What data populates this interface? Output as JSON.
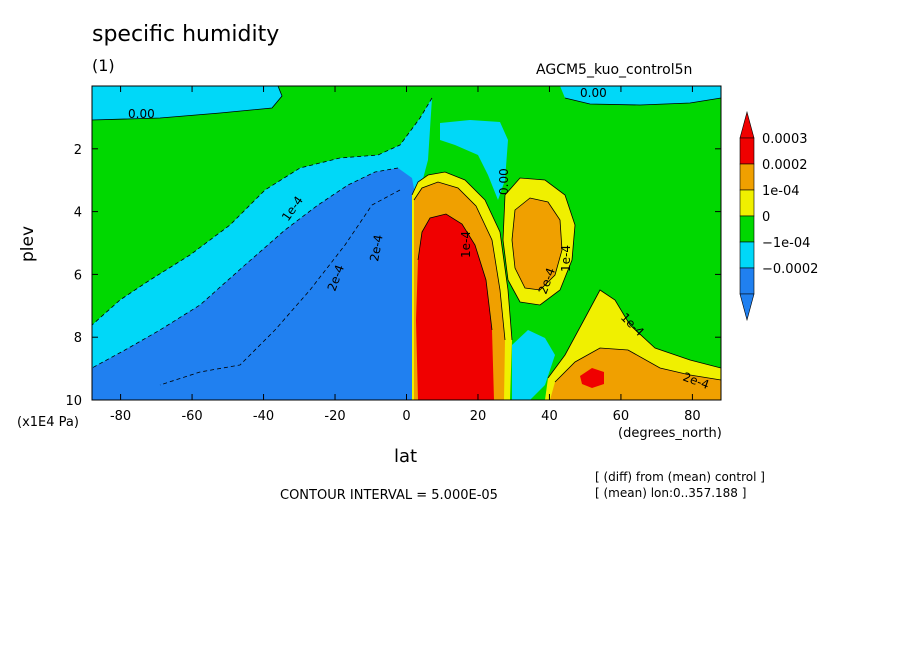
{
  "chart_data": {
    "type": "contour",
    "title": "specific humidity",
    "subtitle": "(1)",
    "run_name": "AGCM5_kuo_control5n",
    "xlabel": "lat",
    "x_units": "(degrees_north)",
    "ylabel": "plev",
    "y_units": "(x1E4 Pa)",
    "xlim": [
      -88,
      88
    ],
    "ylim": [
      0,
      10
    ],
    "x_ticks": [
      "-80",
      "-60",
      "-40",
      "-20",
      "0",
      "20",
      "40",
      "60",
      "80"
    ],
    "y_ticks": [
      "2",
      "4",
      "6",
      "8",
      "10"
    ],
    "contour_interval_text": "CONTOUR INTERVAL = 5.000E-05",
    "notes": [
      "[ (diff) from (mean) control ]",
      "[ (mean) lon:0..357.188 ]"
    ],
    "contour_labels": [
      "0.00",
      "0.00",
      "0.00",
      "1e-4",
      "2e-4",
      "1e-4",
      "2e-4",
      "2e-4",
      "1e-4",
      "1e-4",
      "2e-4"
    ],
    "legend": {
      "entries": [
        {
          "label": "0.0003",
          "color": "#f00000"
        },
        {
          "label": "0.0002",
          "color": "#f0a000"
        },
        {
          "label": "1e-04",
          "color": "#f0f000"
        },
        {
          "label": "0",
          "color": "#00d800"
        },
        {
          "label": "−1e-04",
          "color": "#00d8f8"
        },
        {
          "label": "−0.0002",
          "color": "#2080f0"
        }
      ],
      "top_color": "#f00000",
      "bottom_color": "#2080f0"
    },
    "regions": [
      {
        "level": "-0.0002",
        "description": "SH tropics deep drying, lat -25..0, plev 3.5-10"
      },
      {
        "level": "0.0003",
        "description": "NH tropics strong moistening, lat 3..26, plev 3-10"
      },
      {
        "level": "0.0002",
        "description": "moistening near lat 35..42, plev 3.5-7.5"
      },
      {
        "level": "0.0002",
        "description": "moistening lat 45..88, plev 8.5-10"
      }
    ]
  }
}
